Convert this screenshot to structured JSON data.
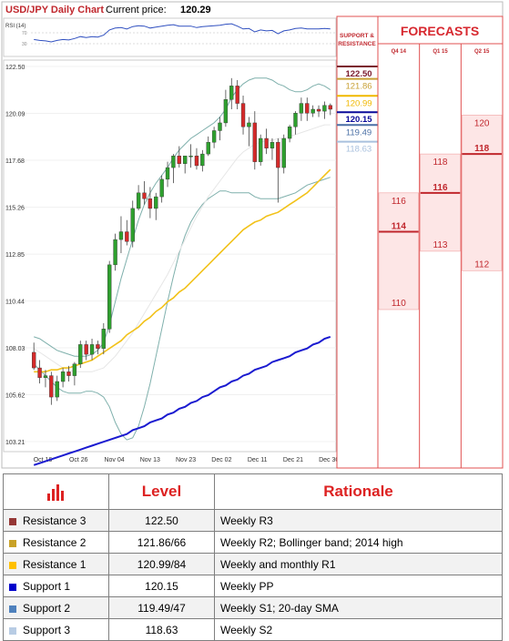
{
  "chart_data": {
    "type": "candlestick",
    "title": "USD/JPY Daily Chart",
    "current_price_label": "Current price:",
    "current_price": "120.29",
    "rsi_label": "RSI (14)",
    "rsi_ticks": [
      "70",
      "30"
    ],
    "y_ticks": [
      122.5,
      120.09,
      117.68,
      115.26,
      112.85,
      110.44,
      108.03,
      105.62,
      103.21
    ],
    "y_tick_labels": [
      "122.50",
      "120.09",
      "117.68",
      "115.26",
      "112.85",
      "110.44",
      "108.03",
      "105.62",
      "103.21"
    ],
    "ylim": [
      103.21,
      122.5
    ],
    "x_labels": [
      "Oct 16",
      "Oct 26",
      "Nov 04",
      "Nov 13",
      "Nov 23",
      "Dec 02",
      "Dec 11",
      "Dec 21",
      "Dec 30"
    ],
    "candles": [
      {
        "o": 107.8,
        "h": 108.3,
        "l": 106.9,
        "c": 107.0
      },
      {
        "o": 107.0,
        "h": 107.4,
        "l": 106.2,
        "c": 106.5
      },
      {
        "o": 106.5,
        "h": 106.9,
        "l": 106.0,
        "c": 106.6
      },
      {
        "o": 106.6,
        "h": 106.8,
        "l": 105.1,
        "c": 105.5
      },
      {
        "o": 105.5,
        "h": 106.6,
        "l": 105.3,
        "c": 106.3
      },
      {
        "o": 106.3,
        "h": 107.0,
        "l": 106.0,
        "c": 106.8
      },
      {
        "o": 106.8,
        "h": 107.1,
        "l": 106.3,
        "c": 106.6
      },
      {
        "o": 106.6,
        "h": 107.3,
        "l": 106.1,
        "c": 107.2
      },
      {
        "o": 107.2,
        "h": 108.4,
        "l": 107.0,
        "c": 108.2
      },
      {
        "o": 108.2,
        "h": 108.4,
        "l": 107.4,
        "c": 107.7
      },
      {
        "o": 107.7,
        "h": 108.5,
        "l": 107.4,
        "c": 108.2
      },
      {
        "o": 108.2,
        "h": 108.4,
        "l": 107.7,
        "c": 108.0
      },
      {
        "o": 108.0,
        "h": 109.3,
        "l": 107.7,
        "c": 109.0
      },
      {
        "o": 109.0,
        "h": 112.5,
        "l": 108.8,
        "c": 112.3
      },
      {
        "o": 112.3,
        "h": 113.9,
        "l": 112.0,
        "c": 113.6
      },
      {
        "o": 113.6,
        "h": 114.8,
        "l": 112.9,
        "c": 114.0
      },
      {
        "o": 114.0,
        "h": 114.6,
        "l": 113.3,
        "c": 113.5
      },
      {
        "o": 113.5,
        "h": 115.6,
        "l": 113.2,
        "c": 115.2
      },
      {
        "o": 115.2,
        "h": 116.4,
        "l": 115.1,
        "c": 116.0
      },
      {
        "o": 116.0,
        "h": 116.6,
        "l": 115.4,
        "c": 115.7
      },
      {
        "o": 115.7,
        "h": 116.3,
        "l": 114.7,
        "c": 115.2
      },
      {
        "o": 115.2,
        "h": 116.0,
        "l": 114.6,
        "c": 115.8
      },
      {
        "o": 115.8,
        "h": 116.9,
        "l": 115.5,
        "c": 116.7
      },
      {
        "o": 116.7,
        "h": 117.6,
        "l": 116.3,
        "c": 117.3
      },
      {
        "o": 117.3,
        "h": 118.0,
        "l": 116.5,
        "c": 117.9
      },
      {
        "o": 117.9,
        "h": 118.4,
        "l": 117.3,
        "c": 117.5
      },
      {
        "o": 117.5,
        "h": 117.9,
        "l": 117.0,
        "c": 117.9
      },
      {
        "o": 117.9,
        "h": 118.5,
        "l": 117.3,
        "c": 117.9
      },
      {
        "o": 117.9,
        "h": 118.3,
        "l": 117.2,
        "c": 117.4
      },
      {
        "o": 117.4,
        "h": 118.2,
        "l": 117.1,
        "c": 118.0
      },
      {
        "o": 118.0,
        "h": 118.9,
        "l": 117.9,
        "c": 118.6
      },
      {
        "o": 118.6,
        "h": 119.4,
        "l": 118.3,
        "c": 119.2
      },
      {
        "o": 119.2,
        "h": 119.9,
        "l": 118.7,
        "c": 119.6
      },
      {
        "o": 119.6,
        "h": 121.3,
        "l": 119.4,
        "c": 120.8
      },
      {
        "o": 120.8,
        "h": 121.9,
        "l": 120.3,
        "c": 121.5
      },
      {
        "o": 121.5,
        "h": 121.8,
        "l": 120.3,
        "c": 120.6
      },
      {
        "o": 120.6,
        "h": 121.0,
        "l": 119.0,
        "c": 119.4
      },
      {
        "o": 119.4,
        "h": 119.9,
        "l": 118.4,
        "c": 119.6
      },
      {
        "o": 119.6,
        "h": 120.2,
        "l": 117.2,
        "c": 117.6
      },
      {
        "o": 117.6,
        "h": 119.0,
        "l": 117.4,
        "c": 118.8
      },
      {
        "o": 118.8,
        "h": 119.3,
        "l": 118.0,
        "c": 118.3
      },
      {
        "o": 118.3,
        "h": 118.8,
        "l": 117.7,
        "c": 118.6
      },
      {
        "o": 118.6,
        "h": 118.8,
        "l": 115.5,
        "c": 117.3
      },
      {
        "o": 117.3,
        "h": 119.0,
        "l": 117.0,
        "c": 118.8
      },
      {
        "o": 118.8,
        "h": 119.5,
        "l": 118.6,
        "c": 119.4
      },
      {
        "o": 119.4,
        "h": 120.2,
        "l": 119.0,
        "c": 120.1
      },
      {
        "o": 120.1,
        "h": 120.9,
        "l": 119.7,
        "c": 120.6
      },
      {
        "o": 120.6,
        "h": 120.9,
        "l": 119.7,
        "c": 120.1
      },
      {
        "o": 120.1,
        "h": 120.5,
        "l": 119.9,
        "c": 120.3
      },
      {
        "o": 120.3,
        "h": 120.5,
        "l": 119.9,
        "c": 120.2
      },
      {
        "o": 120.2,
        "h": 120.7,
        "l": 119.8,
        "c": 120.5
      },
      {
        "o": 120.5,
        "h": 120.6,
        "l": 120.0,
        "c": 120.3
      }
    ],
    "bollinger_upper": [
      108.6,
      108.5,
      108.3,
      108.1,
      107.9,
      107.8,
      107.7,
      107.6,
      107.6,
      107.6,
      107.7,
      107.9,
      108.3,
      109.2,
      110.4,
      111.6,
      112.6,
      113.6,
      114.6,
      115.4,
      116.0,
      116.5,
      116.9,
      117.3,
      117.8,
      118.2,
      118.5,
      118.8,
      119.0,
      119.2,
      119.4,
      119.6,
      119.9,
      120.3,
      120.9,
      121.3,
      121.6,
      121.8,
      121.9,
      121.9,
      121.9,
      121.8,
      121.6,
      121.5,
      121.3,
      121.2,
      121.2,
      121.3,
      121.5,
      121.6,
      121.5,
      121.3
    ],
    "bollinger_lower": [
      107.2,
      106.9,
      106.6,
      106.3,
      106.0,
      105.8,
      105.7,
      105.7,
      105.7,
      105.8,
      105.8,
      105.7,
      105.5,
      105.0,
      104.2,
      103.6,
      103.3,
      103.4,
      104.0,
      105.0,
      106.2,
      107.6,
      109.0,
      110.4,
      111.7,
      112.9,
      113.8,
      114.5,
      115.0,
      115.4,
      115.7,
      115.9,
      116.1,
      116.1,
      116.0,
      116.0,
      116.0,
      116.0,
      115.8,
      115.7,
      115.7,
      115.7,
      115.7,
      115.8,
      115.9,
      116.0,
      116.2,
      116.4,
      116.5,
      116.6,
      116.7,
      116.8
    ],
    "sma20": [
      108.0,
      107.8,
      107.6,
      107.4,
      107.2,
      107.0,
      106.9,
      106.8,
      106.8,
      106.8,
      106.8,
      106.9,
      107.0,
      107.3,
      107.6,
      108.0,
      108.4,
      108.8,
      109.3,
      109.8,
      110.3,
      110.8,
      111.3,
      111.8,
      112.4,
      113.0,
      113.6,
      114.2,
      114.8,
      115.3,
      115.8,
      116.2,
      116.6,
      117.0,
      117.4,
      117.8,
      118.1,
      118.3,
      118.5,
      118.6,
      118.7,
      118.7,
      118.8,
      118.8,
      118.9,
      119.0,
      119.1,
      119.2,
      119.3,
      119.4,
      119.5,
      119.5
    ],
    "sma50": [
      106.8,
      106.8,
      106.8,
      106.9,
      106.9,
      107.0,
      107.0,
      107.1,
      107.2,
      107.3,
      107.4,
      107.6,
      107.8,
      108.0,
      108.2,
      108.4,
      108.7,
      108.9,
      109.1,
      109.4,
      109.6,
      109.9,
      110.1,
      110.4,
      110.6,
      110.9,
      111.1,
      111.4,
      111.7,
      112.0,
      112.3,
      112.6,
      112.9,
      113.2,
      113.5,
      113.8,
      114.1,
      114.3,
      114.5,
      114.6,
      114.8,
      114.9,
      115.0,
      115.2,
      115.4,
      115.6,
      115.8,
      116.0,
      116.3,
      116.6,
      116.9,
      117.2
    ],
    "sma200": [
      102.0,
      102.1,
      102.2,
      102.3,
      102.4,
      102.5,
      102.6,
      102.7,
      102.8,
      102.9,
      103.0,
      103.1,
      103.2,
      103.3,
      103.4,
      103.5,
      103.6,
      103.8,
      103.9,
      104.0,
      104.2,
      104.3,
      104.4,
      104.6,
      104.7,
      104.9,
      105.0,
      105.2,
      105.3,
      105.5,
      105.6,
      105.8,
      106.0,
      106.1,
      106.3,
      106.4,
      106.6,
      106.7,
      106.9,
      107.0,
      107.1,
      107.3,
      107.4,
      107.5,
      107.6,
      107.8,
      107.9,
      108.0,
      108.2,
      108.3,
      108.5,
      108.6
    ],
    "rsi": [
      48,
      46,
      45,
      43,
      46,
      48,
      47,
      50,
      54,
      52,
      54,
      53,
      57,
      68,
      72,
      73,
      70,
      75,
      77,
      76,
      72,
      74,
      76,
      78,
      79,
      76,
      76,
      76,
      73,
      75,
      76,
      77,
      78,
      80,
      81,
      76,
      70,
      71,
      64,
      68,
      66,
      67,
      60,
      66,
      68,
      71,
      72,
      70,
      70,
      70,
      71,
      70
    ]
  },
  "levels_panel": {
    "header": [
      "SUPPORT &",
      "RESISTANCE"
    ],
    "items": [
      {
        "label": "122.50",
        "value": 122.5,
        "color": "#7b1b2e"
      },
      {
        "label": "121.86",
        "value": 121.86,
        "color": "#c8a035"
      },
      {
        "label": "120.99",
        "value": 120.99,
        "color": "#f0b800"
      },
      {
        "label": "120.15",
        "value": 120.15,
        "color": "#0a0a9a"
      },
      {
        "label": "119.49",
        "value": 119.49,
        "color": "#4a6fa5"
      },
      {
        "label": "118.63",
        "value": 118.63,
        "color": "#a9c1de"
      }
    ]
  },
  "forecasts": {
    "title": "FORECASTS",
    "periods": [
      {
        "label": "Q4 14",
        "median": "114",
        "median_value": 114,
        "high": "116",
        "high_value": 116,
        "low": "110",
        "low_value": 110
      },
      {
        "label": "Q1 15",
        "median": "116",
        "median_value": 116,
        "high": "118",
        "high_value": 118,
        "low": "113",
        "low_value": 113
      },
      {
        "label": "Q2 15",
        "median": "118",
        "median_value": 118,
        "high": "120",
        "high_value": 120,
        "low": "112",
        "low_value": 112
      }
    ]
  },
  "table": {
    "headers": {
      "level": "Level",
      "rationale": "Rationale"
    },
    "rows": [
      {
        "name": "Resistance 3",
        "level": "122.50",
        "rationale": "Weekly R3",
        "color": "#953735"
      },
      {
        "name": "Resistance 2",
        "level": "121.86/66",
        "rationale": "Weekly R2; Bollinger band; 2014 high",
        "color": "#c9a227"
      },
      {
        "name": "Resistance 1",
        "level": "120.99/84",
        "rationale": "Weekly and monthly R1",
        "color": "#ffc000"
      },
      {
        "name": "Support 1",
        "level": "120.15",
        "rationale": "Weekly PP",
        "color": "#0000cc"
      },
      {
        "name": "Support 2",
        "level": "119.49/47",
        "rationale": "Weekly S1; 20-day SMA",
        "color": "#4f81bd"
      },
      {
        "name": "Support 3",
        "level": "118.63",
        "rationale": "Weekly S2",
        "color": "#b8cce4"
      }
    ]
  }
}
